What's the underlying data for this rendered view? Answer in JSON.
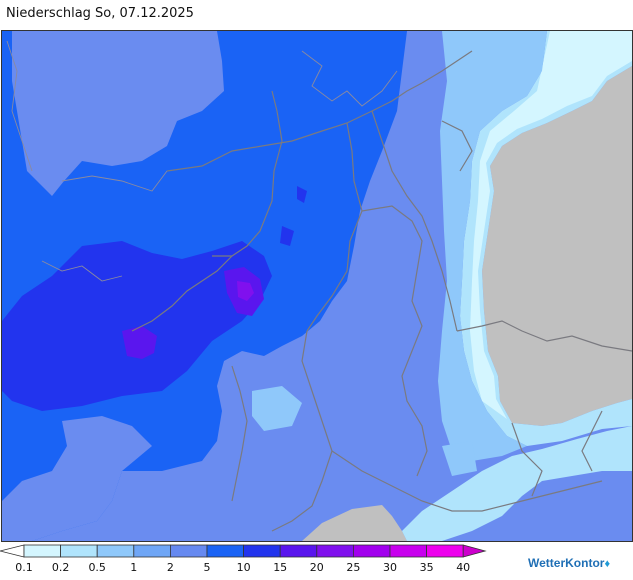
{
  "title": "Niederschlag So, 07.12.2025",
  "map": {
    "colors": {
      "land_no_precip": "#c0c0c0",
      "water": "#ffffff",
      "border_line": "#7a7a80"
    }
  },
  "legend": {
    "labels": [
      "0.1",
      "0.2",
      "0.5",
      "1",
      "2",
      "5",
      "10",
      "15",
      "20",
      "25",
      "30",
      "35",
      "40"
    ],
    "colors": [
      "#ffffff",
      "#d4f6ff",
      "#b0e4fc",
      "#8fc8fa",
      "#6fa6f6",
      "#6689f0",
      "#1a63f5",
      "#2234ee",
      "#5a16ee",
      "#8010ee",
      "#a200ee",
      "#c800ee",
      "#ee00ee",
      "#cc00cc"
    ],
    "levels_mm": [
      0.1,
      0.2,
      0.5,
      1,
      2,
      5,
      10,
      15,
      20,
      25,
      30,
      35,
      40
    ]
  },
  "brand": {
    "name": "WetterKontor",
    "logo_glyph": "drop-icon"
  }
}
